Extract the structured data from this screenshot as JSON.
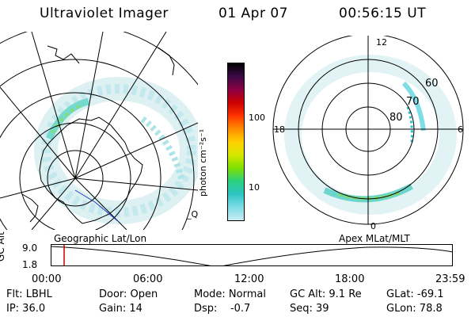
{
  "header": {
    "instrument": "Ultraviolet Imager",
    "date": "01 Apr 07",
    "time": "00:56:15 UT"
  },
  "geo_panel": {
    "caption": "Geographic Lat/Lon",
    "corner_mark": "_Q"
  },
  "apex_panel": {
    "caption": "Apex MLat/MLT",
    "mlt_labels": [
      "12",
      "18",
      "6",
      "0"
    ],
    "mlat_labels": [
      "60",
      "70",
      "80"
    ]
  },
  "colorbar": {
    "tick_labels": [
      "100",
      "10"
    ],
    "unit_label": "photon cm⁻²s⁻¹",
    "colors": [
      "#c8ecf0",
      "#7fdde6",
      "#2ec4c4",
      "#2ad07f",
      "#7fe000",
      "#d6e800",
      "#ffd000",
      "#ff8c00",
      "#ff3300",
      "#cc0000",
      "#8b0044",
      "#3b0a45",
      "#000000"
    ]
  },
  "timeline": {
    "axis_label": "GC Alt",
    "y_labels": [
      "9.0",
      "1.8"
    ],
    "time_ticks": [
      "00:00",
      "06:00",
      "12:00",
      "18:00",
      "23:59"
    ],
    "current_marker_color": "#cc0000"
  },
  "info": {
    "filter": "Flt: LBHL",
    "ip": "IP: 36.0",
    "door": "Door: Open",
    "gain": "Gain: 14",
    "mode": "Mode: Normal",
    "dsp": "Dsp:    -0.7",
    "gc_alt": "GC Alt: 9.1 Re",
    "seq": "Seq: 39",
    "glat": "GLat: -69.1",
    "glon": "GLon: 78.8"
  }
}
